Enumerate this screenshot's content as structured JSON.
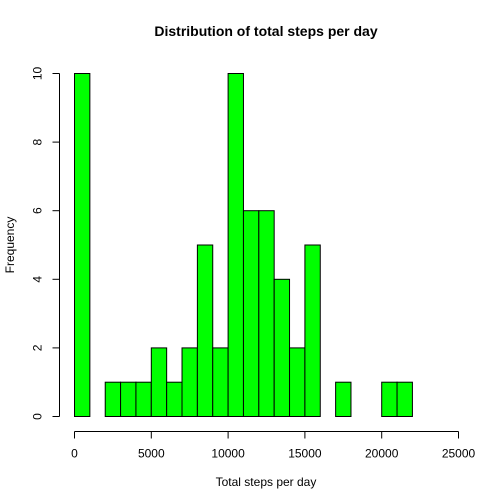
{
  "chart_data": {
    "type": "bar",
    "subtype": "histogram",
    "title": "Distribution of total steps per day",
    "xlabel": "Total steps per day",
    "ylabel": "Frequency",
    "bar_color": "#00ff00",
    "bar_border_color": "#000000",
    "xlim": [
      0,
      25000
    ],
    "ylim": [
      0,
      10
    ],
    "x_ticks": [
      0,
      5000,
      10000,
      15000,
      20000,
      25000
    ],
    "y_ticks": [
      0,
      2,
      4,
      6,
      8,
      10
    ],
    "bin_width": 1000,
    "bin_edges_start": 0,
    "values": [
      10,
      0,
      1,
      1,
      1,
      2,
      1,
      2,
      5,
      2,
      10,
      6,
      6,
      4,
      2,
      5,
      0,
      1,
      0,
      0,
      1,
      1,
      0,
      0,
      0
    ],
    "grid": false
  }
}
